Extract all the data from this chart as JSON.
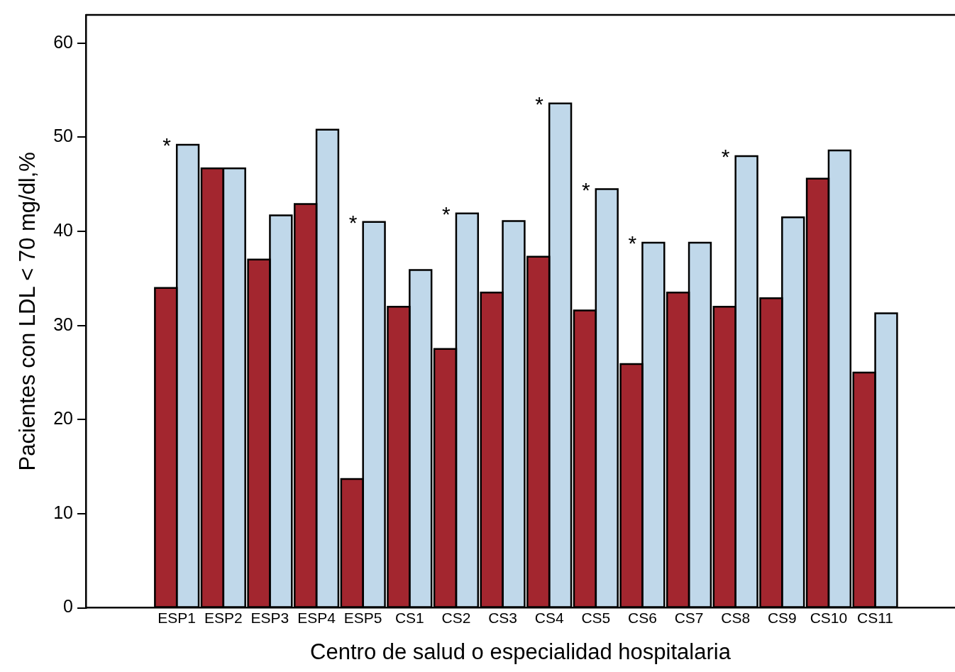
{
  "chart_data": {
    "type": "bar",
    "xlabel": "Centro de salud o especialidad hospitalaria",
    "ylabel": "Pacientes con LDL < 70 mg/dl,%",
    "categories": [
      "ESP1",
      "ESP2",
      "ESP3",
      "ESP4",
      "ESP5",
      "CS1",
      "CS2",
      "CS3",
      "CS4",
      "CS5",
      "CS6",
      "CS7",
      "CS8",
      "CS9",
      "CS10",
      "CS11"
    ],
    "series": [
      {
        "color": "#a3262f",
        "values": [
          34.0,
          46.7,
          37.0,
          42.9,
          13.7,
          32.0,
          27.5,
          33.5,
          37.3,
          31.6,
          25.9,
          33.5,
          32.0,
          32.9,
          45.6,
          25.0
        ]
      },
      {
        "color": "#c0d8ea",
        "values": [
          49.2,
          46.7,
          41.7,
          50.8,
          41.0,
          35.9,
          41.9,
          41.1,
          53.6,
          44.5,
          38.8,
          38.8,
          48.0,
          41.5,
          48.6,
          31.3
        ]
      }
    ],
    "ylim": [
      0,
      63
    ],
    "yticks": [
      0,
      10,
      20,
      30,
      40,
      50,
      60
    ],
    "grid": false,
    "legend": false,
    "annotations": [
      {
        "text": "*",
        "x": "ESP1",
        "y": 49.2
      },
      {
        "text": "*",
        "x": "ESP5",
        "y": 41.0
      },
      {
        "text": "*",
        "x": "CS2",
        "y": 41.9
      },
      {
        "text": "*",
        "x": "CS4",
        "y": 53.6
      },
      {
        "text": "*",
        "x": "CS5",
        "y": 44.5
      },
      {
        "text": "*",
        "x": "CS6",
        "y": 38.8
      },
      {
        "text": "*",
        "x": "CS8",
        "y": 48.0
      }
    ]
  }
}
